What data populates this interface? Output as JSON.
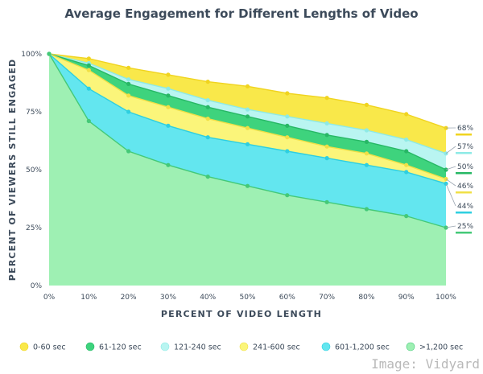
{
  "chart_data": {
    "type": "area",
    "title": "Average Engagement for Different Lengths of Video",
    "xlabel": "PERCENT OF VIDEO LENGTH",
    "ylabel": "PERCENT OF VIEWERS STILL ENGAGED",
    "x": [
      0,
      10,
      20,
      30,
      40,
      50,
      60,
      70,
      80,
      90,
      100
    ],
    "x_tick_labels": [
      "0%",
      "10%",
      "20%",
      "30%",
      "40%",
      "50%",
      "60%",
      "70%",
      "80%",
      "90%",
      "100%"
    ],
    "y_ticks": [
      0,
      25,
      50,
      75,
      100
    ],
    "y_tick_labels": [
      "0%",
      "25%",
      "50%",
      "75%",
      "100%"
    ],
    "xlim": [
      0,
      100
    ],
    "ylim": [
      0,
      100
    ],
    "grid": false,
    "legend_position": "bottom",
    "series": [
      {
        "name": "0-60 sec",
        "color": "#f9e84a",
        "line_color": "#f0d41f",
        "values": [
          100,
          98,
          94,
          91,
          88,
          86,
          83,
          81,
          78,
          74,
          68
        ],
        "end_label": "68%"
      },
      {
        "name": "61-120 sec",
        "color": "#3ed37d",
        "line_color": "#27b865",
        "values": [
          100,
          95,
          87,
          82,
          77,
          73,
          69,
          65,
          62,
          58,
          50
        ],
        "end_label": "50%"
      },
      {
        "name": "121-240 sec",
        "color": "#b9f5f1",
        "line_color": "#8eeae6",
        "values": [
          100,
          96,
          89,
          85,
          80,
          76,
          73,
          70,
          67,
          63,
          57
        ],
        "end_label": "57%"
      },
      {
        "name": "241-600 sec",
        "color": "#fbf57a",
        "line_color": "#f0e046",
        "values": [
          100,
          93,
          82,
          77,
          72,
          68,
          64,
          60,
          57,
          52,
          46
        ],
        "end_label": "46%"
      },
      {
        "name": "601-1,200 sec",
        "color": "#63e6ef",
        "line_color": "#2ecfe0",
        "values": [
          100,
          85,
          75,
          69,
          64,
          61,
          58,
          55,
          52,
          49,
          44
        ],
        "end_label": "44%"
      },
      {
        "name": ">1,200 sec",
        "color": "#9ef0b3",
        "line_color": "#44c978",
        "values": [
          100,
          71,
          58,
          52,
          47,
          43,
          39,
          36,
          33,
          30,
          25
        ],
        "end_label": "25%"
      }
    ]
  },
  "watermark": "Image: Vidyard"
}
